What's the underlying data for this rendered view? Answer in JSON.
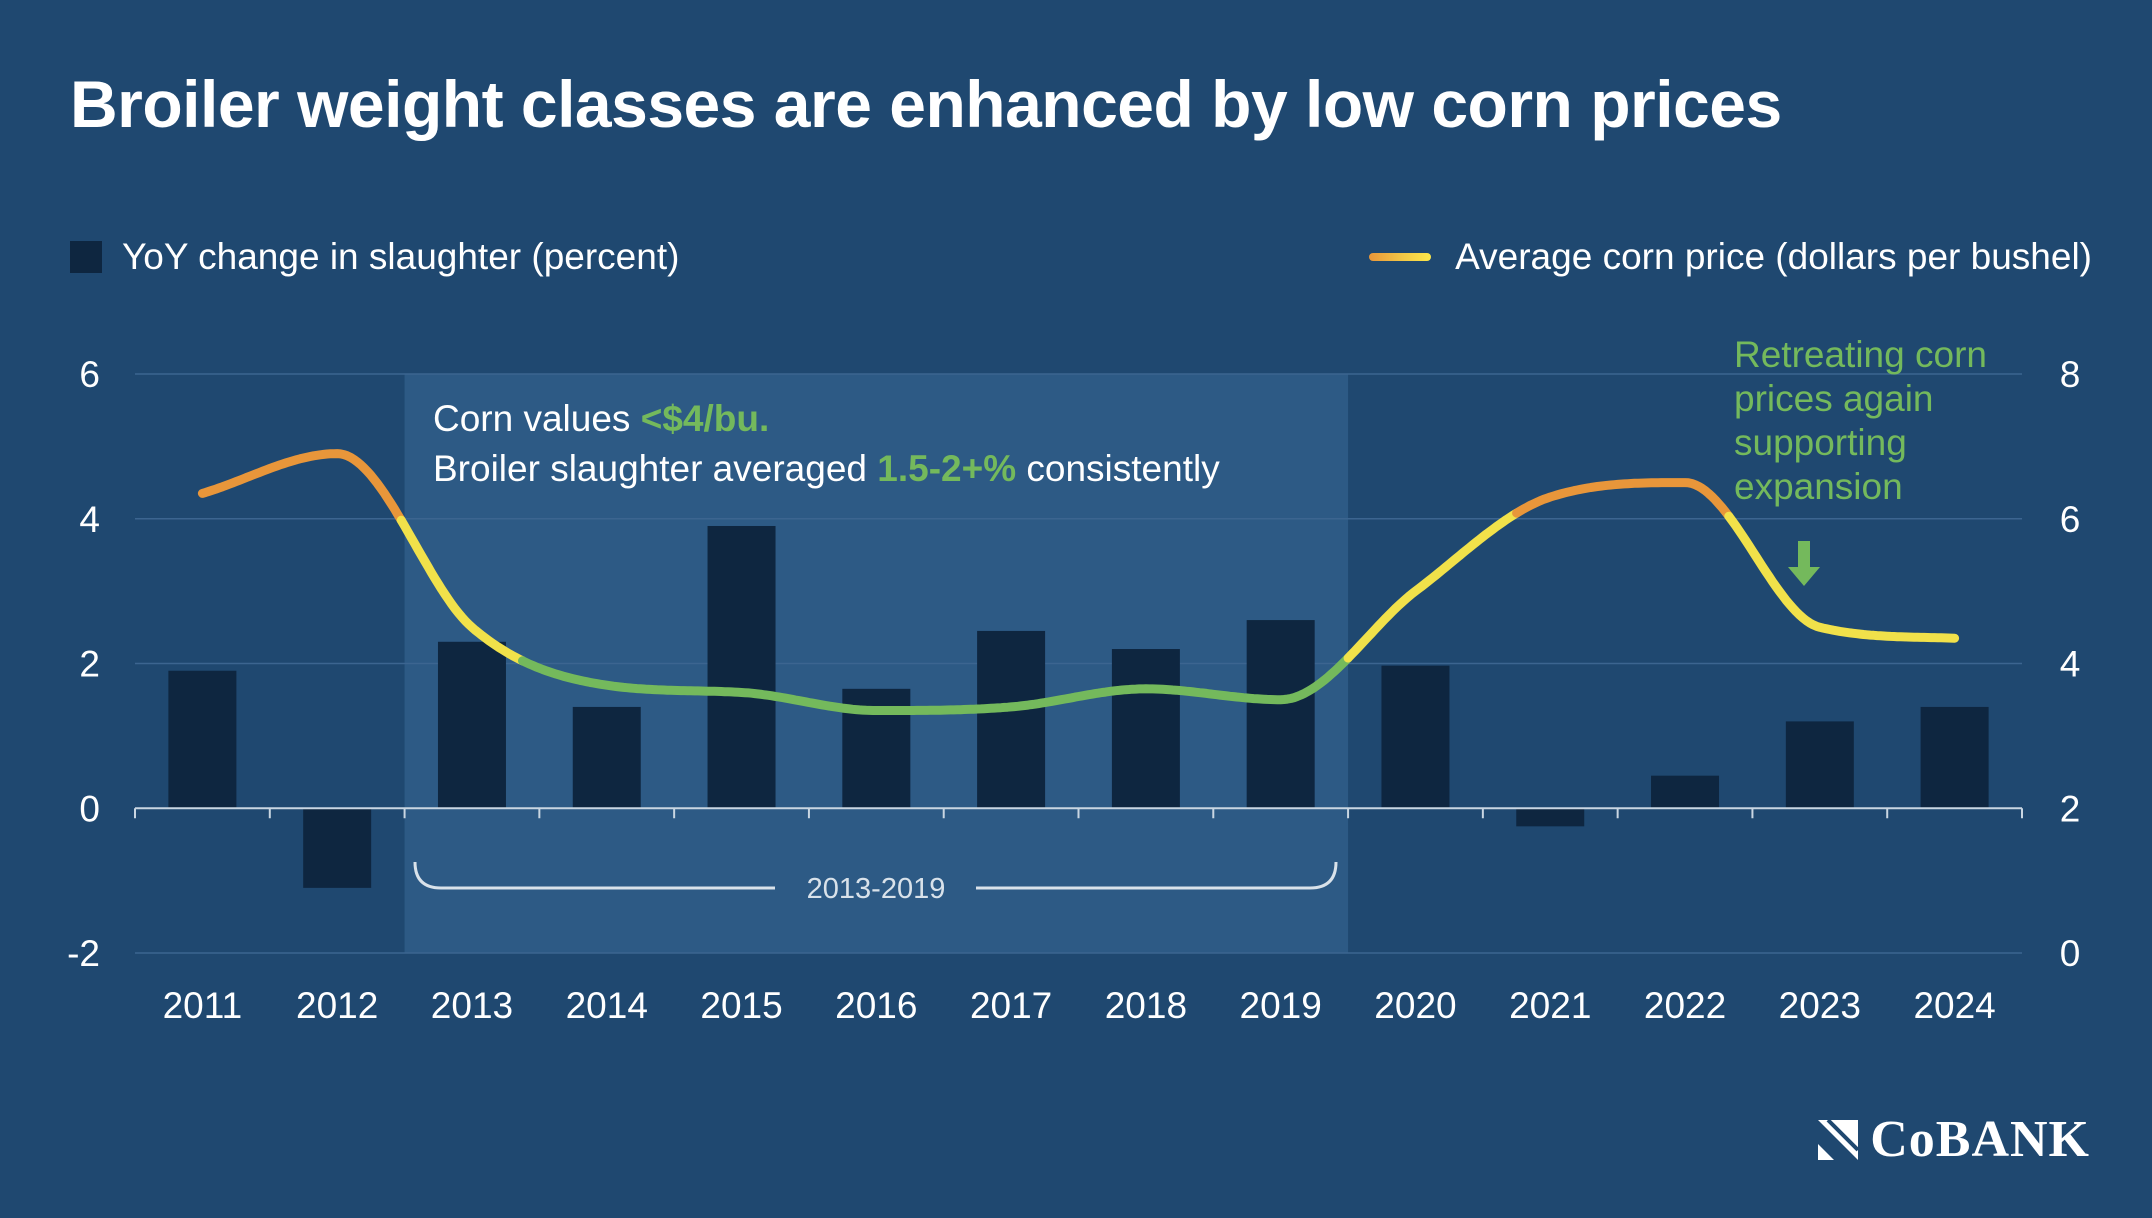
{
  "header": {
    "title": "Broiler weight classes are enhanced by low corn prices"
  },
  "legend": {
    "bars_label": "YoY change in slaughter (percent)",
    "line_label": "Average corn price (dollars per bushel)"
  },
  "annotation_box": {
    "line1_prefix": "Corn values ",
    "line1_highlight": "<$4/bu.",
    "line2_prefix": "Broiler slaughter averaged ",
    "line2_highlight": "1.5-2+%",
    "line2_suffix": " consistently"
  },
  "bracket_label": "2013-2019",
  "callout": {
    "lines": [
      "Retreating corn",
      "prices again",
      "supporting",
      "expansion"
    ]
  },
  "brand": {
    "name": "CoBANK"
  },
  "colors": {
    "background": "#1f4870",
    "bar": "#0e2640",
    "highlight_band": "#2d5a85",
    "green": "#74b95c",
    "yellow": "#f1e14a",
    "orange": "#e8963a",
    "gridline": "#3c6590"
  },
  "chart_data": {
    "type": "bar+line",
    "title": "Broiler weight classes are enhanced by low corn prices",
    "categories": [
      "2011",
      "2012",
      "2013",
      "2014",
      "2015",
      "2016",
      "2017",
      "2018",
      "2019",
      "2020",
      "2021",
      "2022",
      "2023",
      "2024"
    ],
    "series": [
      {
        "name": "YoY change in slaughter (percent)",
        "type": "bar",
        "axis": "left",
        "values": [
          1.9,
          -1.1,
          2.3,
          1.4,
          3.9,
          1.65,
          2.45,
          2.2,
          2.6,
          1.97,
          -0.25,
          0.45,
          1.2,
          1.4
        ]
      },
      {
        "name": "Average corn price (dollars per bushel)",
        "type": "line",
        "axis": "right",
        "values": [
          6.35,
          6.9,
          4.5,
          3.7,
          3.6,
          3.35,
          3.4,
          3.65,
          3.5,
          5.0,
          6.3,
          6.5,
          4.5,
          4.35
        ]
      }
    ],
    "y_left": {
      "min": -2,
      "max": 6,
      "ticks": [
        "-2",
        "0",
        "2",
        "4",
        "6"
      ]
    },
    "y_right": {
      "min": 0,
      "max": 8,
      "ticks": [
        "0",
        "2",
        "4",
        "6",
        "8"
      ]
    },
    "highlight_range": [
      "2013",
      "2019"
    ],
    "line_color_bands": [
      {
        "label": "under 4",
        "color": "#74b95c"
      },
      {
        "label": "4 to 6",
        "color": "#f1e14a"
      },
      {
        "label": "over 6",
        "color": "#e8963a"
      }
    ]
  }
}
